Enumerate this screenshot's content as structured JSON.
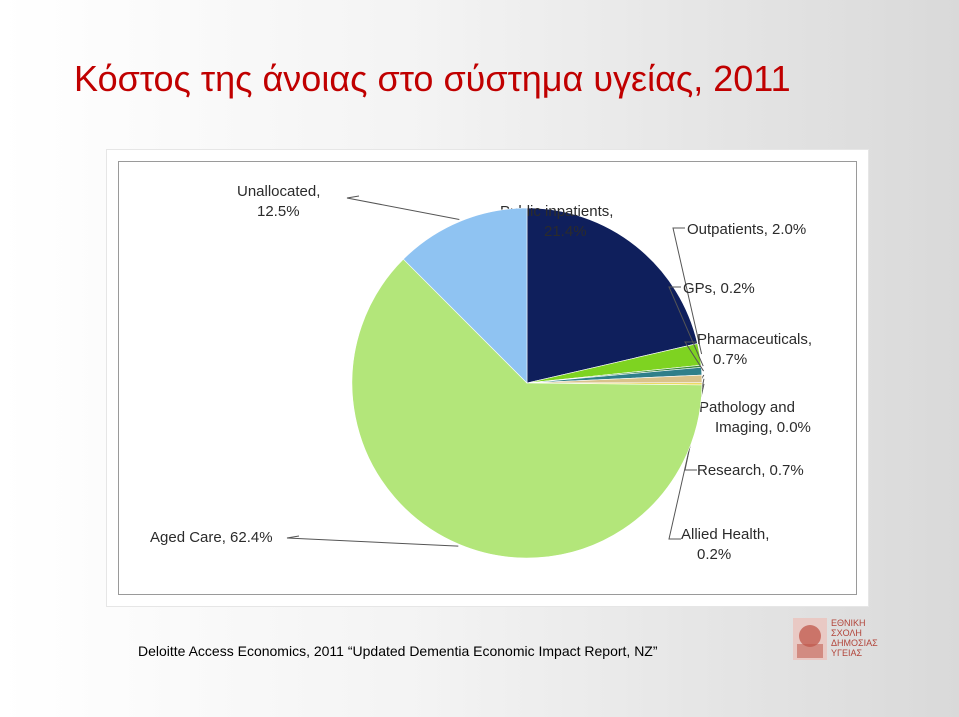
{
  "slide": {
    "title": "Κόστος της άνοιας στο σύστημα υγείας, 2011",
    "source": "Deloitte Access Economics, 2011 “Updated Dementia Economic Impact Report, NZ”"
  },
  "logo": {
    "name": "ΕΘΝΙΚΗ ΣΧΟΛΗ ΔΗΜΟΣΙΑΣ ΥΓΕΙΑΣ",
    "lines": [
      "ΕΘΝΙΚΗ",
      "ΣΧΟΛΗ",
      "ΔΗΜΟΣΙΑΣ",
      "ΥΓΕΙΑΣ"
    ],
    "color": "#b2443a"
  },
  "chart_data": {
    "type": "pie",
    "slices": [
      {
        "name": "Public inpatients",
        "value": 21.4,
        "line1": "Public inpatients,",
        "line2": "21.4%",
        "color": "#0f1f5c"
      },
      {
        "name": "Outpatients",
        "value": 2.0,
        "line1": "Outpatients, 2.0%",
        "line2": "",
        "color": "#7ed321"
      },
      {
        "name": "GPs",
        "value": 0.2,
        "line1": "GPs, 0.2%",
        "line2": "",
        "color": "#3a8a3a"
      },
      {
        "name": "Pharmaceuticals",
        "value": 0.7,
        "line1": "Pharmaceuticals,",
        "line2": "0.7%",
        "color": "#2f7f8a"
      },
      {
        "name": "Pathology and Imaging",
        "value": 0.0,
        "line1": "Pathology and",
        "line2": "Imaging, 0.0%",
        "color": "#9fb7c9"
      },
      {
        "name": "Research",
        "value": 0.7,
        "line1": "Research, 0.7%",
        "line2": "",
        "color": "#d9c28a"
      },
      {
        "name": "Allied Health",
        "value": 0.2,
        "line1": "Allied Health,",
        "line2": "0.2%",
        "color": "#e8d44d"
      },
      {
        "name": "Aged Care",
        "value": 62.4,
        "line1": "Aged Care, 62.4%",
        "line2": "",
        "color": "#b3e67a"
      },
      {
        "name": "Unallocated",
        "value": 12.5,
        "line1": "Unallocated,",
        "line2": "12.5%",
        "color": "#8fc3f2"
      }
    ],
    "start_angle": "12 o'clock",
    "direction": "clockwise"
  }
}
